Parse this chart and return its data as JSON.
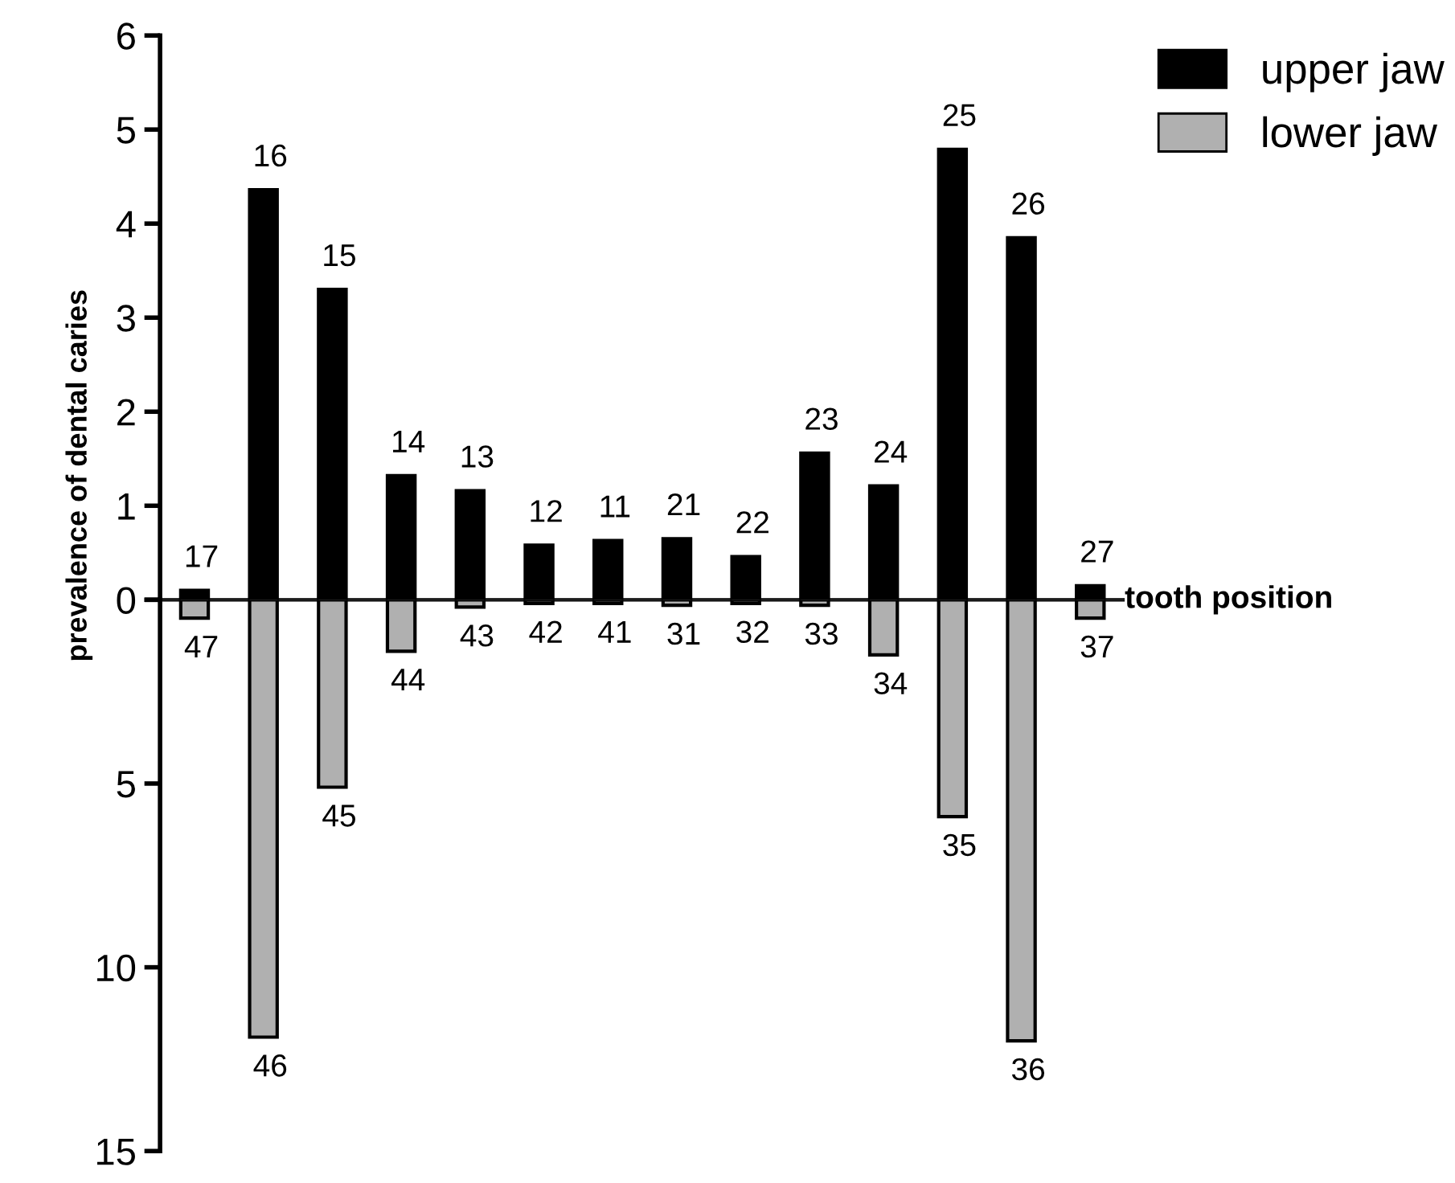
{
  "chart_data": [
    {
      "type": "bar",
      "ylabel": "prevalence of dental caries",
      "xlabel": "tooth position",
      "categories": [
        "17",
        "16",
        "15",
        "14",
        "13",
        "12",
        "11",
        "21",
        "22",
        "23",
        "24",
        "25",
        "26",
        "27"
      ],
      "series": [
        {
          "name": "upper jaw",
          "color": "#000000",
          "values": [
            0.1,
            4.36,
            3.3,
            1.32,
            1.16,
            0.58,
            0.63,
            0.65,
            0.46,
            1.56,
            1.21,
            4.79,
            3.85,
            0.15
          ]
        }
      ],
      "ylim": [
        0,
        6
      ],
      "yticks": [
        0,
        1,
        2,
        3,
        4,
        5,
        6
      ],
      "grid": false,
      "legend": "top right"
    },
    {
      "type": "bar",
      "categories": [
        "47",
        "46",
        "45",
        "44",
        "43",
        "42",
        "41",
        "31",
        "32",
        "33",
        "34",
        "35",
        "36",
        "37"
      ],
      "series": [
        {
          "name": "lower jaw",
          "color": "#b0b0b0",
          "values": [
            0.5,
            11.9,
            5.1,
            1.4,
            0.2,
            0.1,
            0.1,
            0.15,
            0.1,
            0.15,
            1.5,
            5.9,
            12.0,
            0.5
          ]
        }
      ],
      "ylim": [
        15,
        0
      ],
      "yticks": [
        {
          "value": 0,
          "label": null
        },
        5,
        10,
        15
      ],
      "grid": false,
      "legend": "top right"
    }
  ]
}
